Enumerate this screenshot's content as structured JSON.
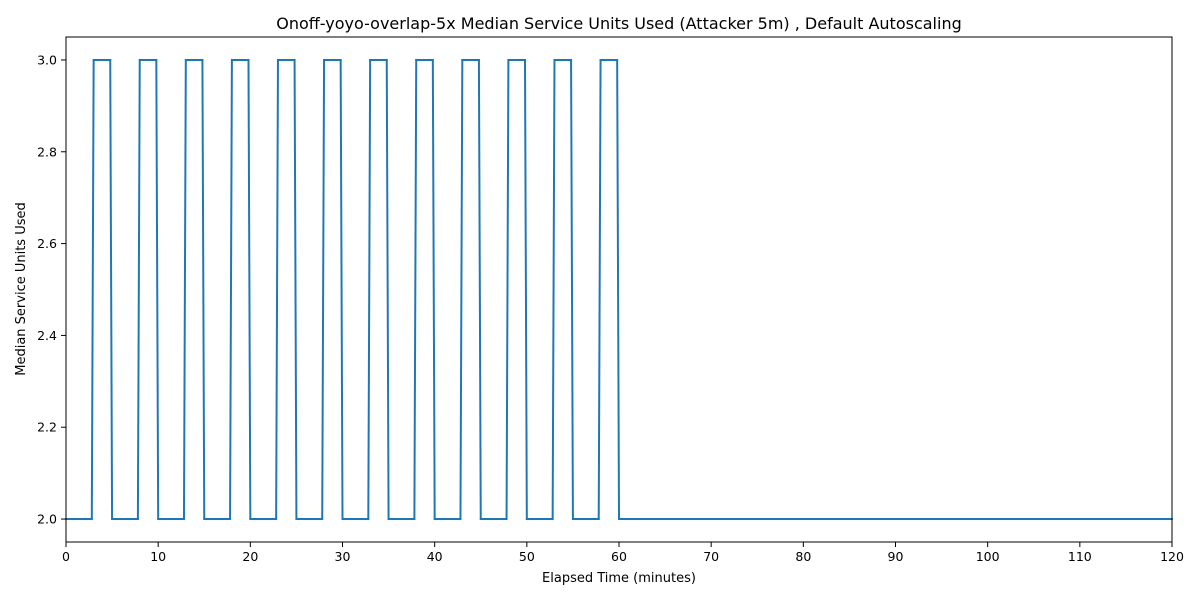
{
  "chart_data": {
    "type": "line",
    "title": "Onoff-yoyo-overlap-5x Median Service Units Used (Attacker 5m) , Default Autoscaling",
    "xlabel": "Elapsed Time (minutes)",
    "ylabel": "Median Service Units Used",
    "xlim": [
      0,
      120
    ],
    "ylim": [
      1.95,
      3.05
    ],
    "xticks": [
      0,
      10,
      20,
      30,
      40,
      50,
      60,
      70,
      80,
      90,
      100,
      110,
      120
    ],
    "yticks": [
      "2.0",
      "2.2",
      "2.4",
      "2.6",
      "2.8",
      "3.0"
    ],
    "yticks_values": [
      2.0,
      2.2,
      2.4,
      2.6,
      2.8,
      3.0
    ],
    "grid": false,
    "series": [
      {
        "color": "#1f77b4",
        "marker": "dot",
        "x": [
          0,
          2.8,
          3.0,
          4.8,
          5.0,
          7.8,
          8.0,
          9.8,
          10.0,
          12.8,
          13.0,
          14.8,
          15.0,
          17.8,
          18.0,
          19.8,
          20.0,
          22.8,
          23.0,
          24.8,
          25.0,
          27.8,
          28.0,
          29.8,
          30.0,
          32.8,
          33.0,
          34.8,
          35.0,
          37.8,
          38.0,
          39.8,
          40.0,
          42.8,
          43.0,
          44.8,
          45.0,
          47.8,
          48.0,
          49.8,
          50.0,
          52.8,
          53.0,
          54.8,
          55.0,
          57.8,
          58.0,
          59.8,
          60.0,
          120
        ],
        "y": [
          2,
          2,
          3,
          3,
          2,
          2,
          3,
          3,
          2,
          2,
          3,
          3,
          2,
          2,
          3,
          3,
          2,
          2,
          3,
          3,
          2,
          2,
          3,
          3,
          2,
          2,
          3,
          3,
          2,
          2,
          3,
          3,
          2,
          2,
          3,
          3,
          2,
          2,
          3,
          3,
          2,
          2,
          3,
          3,
          2,
          2,
          3,
          3,
          2,
          2
        ]
      }
    ]
  }
}
